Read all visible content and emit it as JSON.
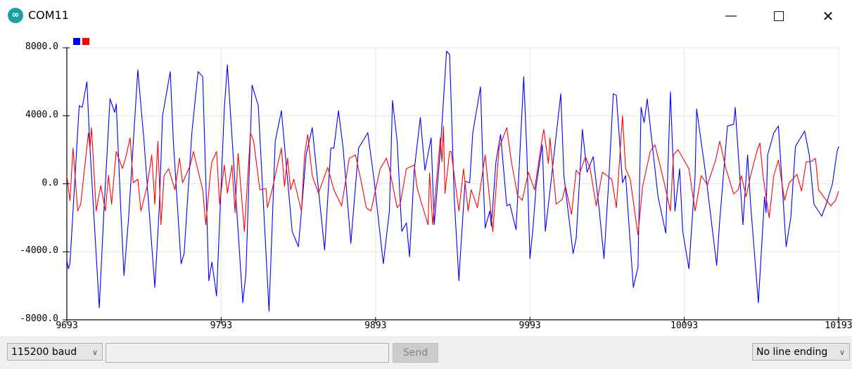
{
  "window": {
    "title": "COM11",
    "icon": "arduino-infinity-icon"
  },
  "controls": {
    "minimize": "minimize-icon",
    "maximize": "maximize-icon",
    "close": "close-icon"
  },
  "bottom": {
    "baud": "115200 baud",
    "send_label": "Send",
    "input_value": "",
    "line_ending": "No line ending"
  },
  "chart_data": {
    "type": "line",
    "xlim": [
      9693,
      10193
    ],
    "ylim": [
      -8000,
      8000
    ],
    "grid": true,
    "legend": "top-left",
    "x_ticks": [
      "9693",
      "9793",
      "9893",
      "9993",
      "10093",
      "10193"
    ],
    "y_ticks": [
      "8000.0",
      "4000.0",
      "0.0",
      "-4000.0",
      "-8000.0"
    ],
    "series": [
      {
        "color": "#0000ff",
        "points": [
          [
            9693,
            -4500
          ],
          [
            9694,
            -5000
          ],
          [
            9695,
            -4700
          ],
          [
            9701,
            4600
          ],
          [
            9703,
            4500
          ],
          [
            9706,
            6000
          ],
          [
            9708,
            2100
          ],
          [
            9714,
            -7300
          ],
          [
            9717,
            -1600
          ],
          [
            9721,
            5000
          ],
          [
            9724,
            4200
          ],
          [
            9725,
            4700
          ],
          [
            9728,
            -1600
          ],
          [
            9730,
            -5400
          ],
          [
            9733,
            -2000
          ],
          [
            9739,
            6700
          ],
          [
            9743,
            2500
          ],
          [
            9750,
            -6100
          ],
          [
            9753,
            -1200
          ],
          [
            9755,
            4000
          ],
          [
            9760,
            6600
          ],
          [
            9762,
            2500
          ],
          [
            9767,
            -4700
          ],
          [
            9769,
            -4100
          ],
          [
            9774,
            3000
          ],
          [
            9778,
            6600
          ],
          [
            9781,
            6300
          ],
          [
            9785,
            -5700
          ],
          [
            9787,
            -4600
          ],
          [
            9790,
            -6600
          ],
          [
            9795,
            4400
          ],
          [
            9797,
            7000
          ],
          [
            9801,
            1300
          ],
          [
            9807,
            -7000
          ],
          [
            9809,
            -5300
          ],
          [
            9813,
            5800
          ],
          [
            9817,
            4600
          ],
          [
            9824,
            -7500
          ],
          [
            9828,
            2500
          ],
          [
            9832,
            4300
          ],
          [
            9839,
            -2800
          ],
          [
            9843,
            -3700
          ],
          [
            9845,
            -1600
          ],
          [
            9848,
            1700
          ],
          [
            9852,
            3300
          ],
          [
            9860,
            -3900
          ],
          [
            9864,
            2100
          ],
          [
            9866,
            2100
          ],
          [
            9869,
            4300
          ],
          [
            9872,
            2100
          ],
          [
            9877,
            -3500
          ],
          [
            9882,
            2100
          ],
          [
            9888,
            3000
          ],
          [
            9892,
            270
          ],
          [
            9898,
            -4700
          ],
          [
            9902,
            -1600
          ],
          [
            9904,
            4900
          ],
          [
            9907,
            2500
          ],
          [
            9910,
            -2800
          ],
          [
            9913,
            -2300
          ],
          [
            9915,
            -4300
          ],
          [
            9918,
            760
          ],
          [
            9922,
            3900
          ],
          [
            9925,
            800
          ],
          [
            9929,
            2700
          ],
          [
            9931,
            -2400
          ],
          [
            9935,
            2000
          ],
          [
            9939,
            7800
          ],
          [
            9941,
            7600
          ],
          [
            9944,
            -900
          ],
          [
            9947,
            -5700
          ],
          [
            9948,
            -4100
          ],
          [
            9951,
            140
          ],
          [
            9954,
            60
          ],
          [
            9956,
            3000
          ],
          [
            9961,
            5700
          ],
          [
            9963,
            -350
          ],
          [
            9964,
            -2600
          ],
          [
            9967,
            -1600
          ],
          [
            9968,
            -2500
          ],
          [
            9971,
            1300
          ],
          [
            9974,
            2900
          ],
          [
            9978,
            -1300
          ],
          [
            9980,
            -1200
          ],
          [
            9984,
            -2700
          ],
          [
            9989,
            6300
          ],
          [
            9991,
            1900
          ],
          [
            9993,
            -4400
          ],
          [
            9995,
            -2600
          ],
          [
            9997,
            -140
          ],
          [
            10001,
            2300
          ],
          [
            10003,
            -2800
          ],
          [
            10006,
            -430
          ],
          [
            10013,
            5300
          ],
          [
            10015,
            480
          ],
          [
            10021,
            -4100
          ],
          [
            10023,
            -3200
          ],
          [
            10027,
            3200
          ],
          [
            10030,
            680
          ],
          [
            10034,
            1600
          ],
          [
            10038,
            -1600
          ],
          [
            10041,
            -4400
          ],
          [
            10044,
            60
          ],
          [
            10047,
            5300
          ],
          [
            10049,
            5200
          ],
          [
            10053,
            60
          ],
          [
            10055,
            480
          ],
          [
            10060,
            -6100
          ],
          [
            10063,
            -4900
          ],
          [
            10065,
            4500
          ],
          [
            10067,
            3600
          ],
          [
            10069,
            5000
          ],
          [
            10076,
            -760
          ],
          [
            10081,
            -2900
          ],
          [
            10084,
            5400
          ],
          [
            10087,
            -1600
          ],
          [
            10090,
            890
          ],
          [
            10092,
            -2800
          ],
          [
            10096,
            -5000
          ],
          [
            10100,
            480
          ],
          [
            10101,
            4400
          ],
          [
            10107,
            480
          ],
          [
            10114,
            -4800
          ],
          [
            10116,
            -2100
          ],
          [
            10120,
            2300
          ],
          [
            10121,
            3400
          ],
          [
            10125,
            3500
          ],
          [
            10126,
            4500
          ],
          [
            10131,
            -2400
          ],
          [
            10134,
            1700
          ],
          [
            10136,
            -1200
          ],
          [
            10141,
            -7000
          ],
          [
            10145,
            -760
          ],
          [
            10146,
            -1700
          ],
          [
            10147,
            1700
          ],
          [
            10151,
            3000
          ],
          [
            10154,
            3400
          ],
          [
            10159,
            -3700
          ],
          [
            10162,
            -2000
          ],
          [
            10165,
            2200
          ],
          [
            10171,
            3100
          ],
          [
            10174,
            1700
          ],
          [
            10177,
            -1200
          ],
          [
            10182,
            -1900
          ],
          [
            10185,
            -1200
          ],
          [
            10189,
            0
          ],
          [
            10192,
            1900
          ],
          [
            10193,
            2200
          ]
        ]
      },
      {
        "color": "#ff0000",
        "points": [
          [
            9693,
            500
          ],
          [
            9695,
            -1000
          ],
          [
            9697,
            2100
          ],
          [
            9700,
            -1600
          ],
          [
            9702,
            -1200
          ],
          [
            9707,
            3000
          ],
          [
            9708,
            2100
          ],
          [
            9709,
            3300
          ],
          [
            9712,
            -1600
          ],
          [
            9715,
            -100
          ],
          [
            9718,
            -1600
          ],
          [
            9720,
            500
          ],
          [
            9722,
            -1200
          ],
          [
            9725,
            1900
          ],
          [
            9729,
            900
          ],
          [
            9731,
            1500
          ],
          [
            9734,
            2700
          ],
          [
            9736,
            60
          ],
          [
            9739,
            270
          ],
          [
            9741,
            -1600
          ],
          [
            9745,
            -150
          ],
          [
            9748,
            1700
          ],
          [
            9750,
            -1200
          ],
          [
            9752,
            2500
          ],
          [
            9754,
            -2400
          ],
          [
            9756,
            480
          ],
          [
            9759,
            890
          ],
          [
            9763,
            -350
          ],
          [
            9766,
            1500
          ],
          [
            9768,
            60
          ],
          [
            9773,
            1100
          ],
          [
            9775,
            1900
          ],
          [
            9781,
            -350
          ],
          [
            9783,
            -2400
          ],
          [
            9786,
            560
          ],
          [
            9787,
            1300
          ],
          [
            9790,
            1900
          ],
          [
            9792,
            -1200
          ],
          [
            9795,
            1100
          ],
          [
            9797,
            -560
          ],
          [
            9800,
            1100
          ],
          [
            9802,
            -1700
          ],
          [
            9804,
            1800
          ],
          [
            9808,
            -2800
          ],
          [
            9812,
            3000
          ],
          [
            9814,
            2500
          ],
          [
            9818,
            -350
          ],
          [
            9822,
            -270
          ],
          [
            9823,
            -1400
          ],
          [
            9826,
            -350
          ],
          [
            9829,
            900
          ],
          [
            9832,
            2100
          ],
          [
            9834,
            -150
          ],
          [
            9836,
            1500
          ],
          [
            9838,
            -350
          ],
          [
            9840,
            270
          ],
          [
            9845,
            -1600
          ],
          [
            9847,
            1700
          ],
          [
            9849,
            2900
          ],
          [
            9852,
            480
          ],
          [
            9856,
            -560
          ],
          [
            9862,
            970
          ],
          [
            9866,
            -350
          ],
          [
            9871,
            -1300
          ],
          [
            9876,
            1500
          ],
          [
            9880,
            1700
          ],
          [
            9884,
            0
          ],
          [
            9887,
            -1400
          ],
          [
            9890,
            -1600
          ],
          [
            9896,
            890
          ],
          [
            9900,
            1500
          ],
          [
            9902,
            890
          ],
          [
            9907,
            -1400
          ],
          [
            9909,
            -1200
          ],
          [
            9913,
            890
          ],
          [
            9918,
            1100
          ],
          [
            9920,
            -270
          ],
          [
            9923,
            -1200
          ],
          [
            9927,
            -2400
          ],
          [
            9928,
            640
          ],
          [
            9930,
            -2400
          ],
          [
            9935,
            2700
          ],
          [
            9936,
            1300
          ],
          [
            9937,
            3400
          ],
          [
            9938,
            -560
          ],
          [
            9941,
            1900
          ],
          [
            9942,
            1900
          ],
          [
            9944,
            480
          ],
          [
            9947,
            -1600
          ],
          [
            9950,
            890
          ],
          [
            9953,
            -1600
          ],
          [
            9955,
            -350
          ],
          [
            9959,
            -1400
          ],
          [
            9964,
            1700
          ],
          [
            9969,
            -2800
          ],
          [
            9973,
            2100
          ],
          [
            9978,
            3300
          ],
          [
            9981,
            1300
          ],
          [
            9985,
            -680
          ],
          [
            9988,
            -970
          ],
          [
            9992,
            680
          ],
          [
            9996,
            -350
          ],
          [
            10001,
            2700
          ],
          [
            10002,
            3200
          ],
          [
            10005,
            1200
          ],
          [
            10006,
            2700
          ],
          [
            10010,
            -1200
          ],
          [
            10014,
            -900
          ],
          [
            10016,
            -150
          ],
          [
            10020,
            -1800
          ],
          [
            10023,
            800
          ],
          [
            10025,
            560
          ],
          [
            10029,
            1600
          ],
          [
            10032,
            890
          ],
          [
            10036,
            -1300
          ],
          [
            10040,
            680
          ],
          [
            10046,
            270
          ],
          [
            10049,
            -1400
          ],
          [
            10053,
            4000
          ],
          [
            10055,
            890
          ],
          [
            10058,
            270
          ],
          [
            10063,
            -3000
          ],
          [
            10066,
            -150
          ],
          [
            10071,
            1900
          ],
          [
            10074,
            2300
          ],
          [
            10077,
            1200
          ],
          [
            10080,
            60
          ],
          [
            10084,
            -1600
          ],
          [
            10086,
            1700
          ],
          [
            10089,
            2000
          ],
          [
            10096,
            890
          ],
          [
            10100,
            -1600
          ],
          [
            10104,
            480
          ],
          [
            10108,
            -60
          ],
          [
            10113,
            1300
          ],
          [
            10116,
            2500
          ],
          [
            10120,
            890
          ],
          [
            10125,
            -600
          ],
          [
            10128,
            -350
          ],
          [
            10130,
            480
          ],
          [
            10133,
            -760
          ],
          [
            10136,
            480
          ],
          [
            10140,
            1900
          ],
          [
            10142,
            2400
          ],
          [
            10144,
            480
          ],
          [
            10148,
            -2000
          ],
          [
            10151,
            480
          ],
          [
            10154,
            1400
          ],
          [
            10158,
            -970
          ],
          [
            10161,
            60
          ],
          [
            10166,
            560
          ],
          [
            10169,
            -430
          ],
          [
            10172,
            1300
          ],
          [
            10175,
            1300
          ],
          [
            10178,
            1500
          ],
          [
            10180,
            -350
          ],
          [
            10184,
            -850
          ],
          [
            10188,
            -1300
          ],
          [
            10191,
            -970
          ],
          [
            10193,
            -430
          ]
        ]
      }
    ]
  }
}
